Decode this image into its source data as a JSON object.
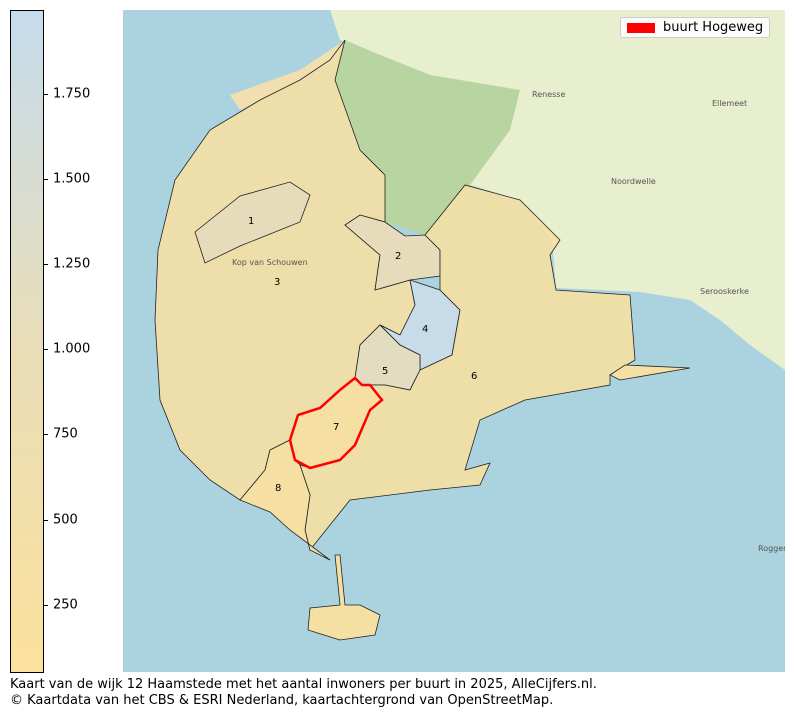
{
  "colorbar": {
    "ticks": [
      "1.750",
      "1.500",
      "1.250",
      "1.000",
      "750",
      "500",
      "250"
    ],
    "tick_values": [
      1750,
      1500,
      1250,
      1000,
      750,
      500,
      250
    ],
    "color_low": "#fbe19d",
    "color_high": "#c6dced"
  },
  "legend": {
    "label": "buurt Hogeweg",
    "color": "#ff0000"
  },
  "map": {
    "region_labels": [
      "1",
      "2",
      "3",
      "4",
      "5",
      "6",
      "7",
      "8"
    ],
    "places": [
      "Renesse",
      "Noordwelle",
      "Ellemeet",
      "Serooskerke",
      "Kop van Schouwen",
      "Roggenplaat"
    ],
    "highlight": "7",
    "sea_color": "#aad3df"
  },
  "caption": {
    "line1": "Kaart van de wijk 12 Haamstede met het aantal inwoners per buurt in 2025, AlleCijfers.nl.",
    "line2": "© Kaartdata van het CBS & ESRI Nederland, kaartachtergrond van OpenStreetMap."
  }
}
